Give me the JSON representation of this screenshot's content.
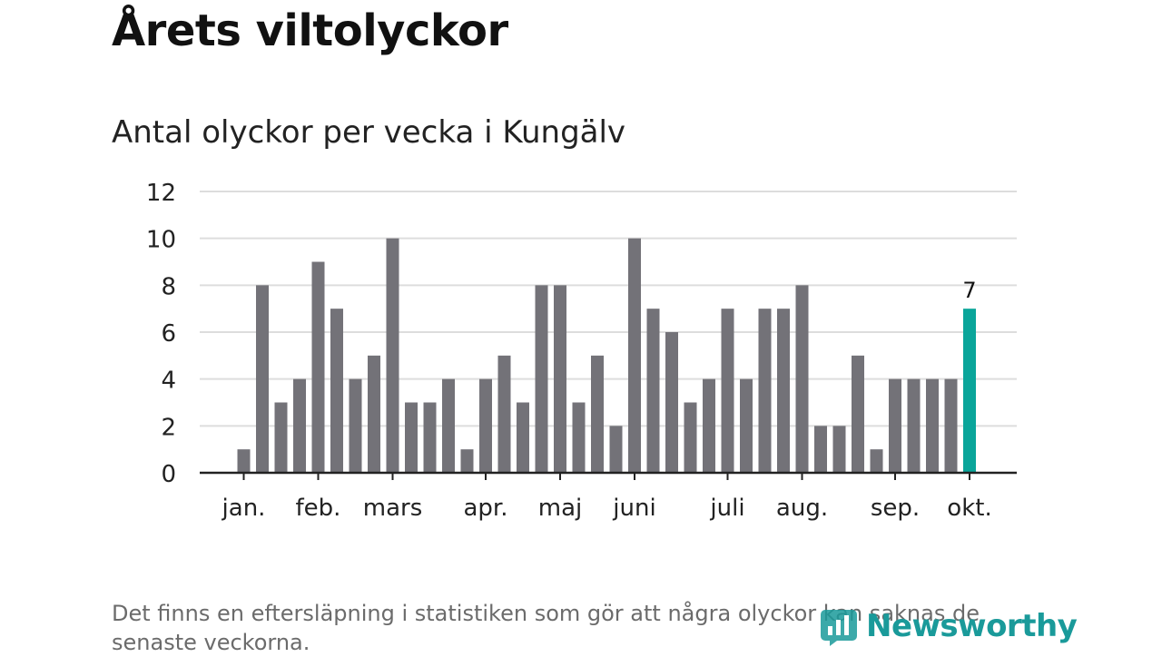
{
  "header": {
    "title": "Årets viltolyckor",
    "subtitle": "Antal olyckor per vecka i Kungälv"
  },
  "chart_data": {
    "type": "bar",
    "title": "Årets viltolyckor",
    "subtitle": "Antal olyckor per vecka i Kungälv",
    "ylim": [
      0,
      12
    ],
    "yticks": [
      0,
      2,
      4,
      6,
      8,
      10,
      12
    ],
    "grid": true,
    "values": [
      1,
      8,
      3,
      4,
      9,
      7,
      4,
      5,
      10,
      3,
      3,
      4,
      1,
      4,
      5,
      3,
      8,
      8,
      3,
      5,
      2,
      10,
      7,
      6,
      3,
      4,
      7,
      4,
      7,
      7,
      8,
      2,
      2,
      5,
      1,
      4,
      4,
      4,
      4,
      7
    ],
    "x_month_labels": [
      {
        "label": "jan.",
        "week_index": 0
      },
      {
        "label": "feb.",
        "week_index": 4
      },
      {
        "label": "mars",
        "week_index": 8
      },
      {
        "label": "apr.",
        "week_index": 13
      },
      {
        "label": "maj",
        "week_index": 17
      },
      {
        "label": "juni",
        "week_index": 21
      },
      {
        "label": "juli",
        "week_index": 26
      },
      {
        "label": "aug.",
        "week_index": 30
      },
      {
        "label": "sep.",
        "week_index": 35
      },
      {
        "label": "okt.",
        "week_index": 39
      }
    ],
    "highlight_index": 39,
    "highlight_label": "7",
    "colors": {
      "bar": "#737278",
      "highlight": "#0aa59a",
      "grid": "#dddddd",
      "axis": "#222222"
    }
  },
  "footer": {
    "note": "Det finns en eftersläpning i statistiken som gör att några olyckor kan saknas de senaste veckorna.",
    "brand": "Newsworthy",
    "brand_color": "#1a9a9a"
  }
}
